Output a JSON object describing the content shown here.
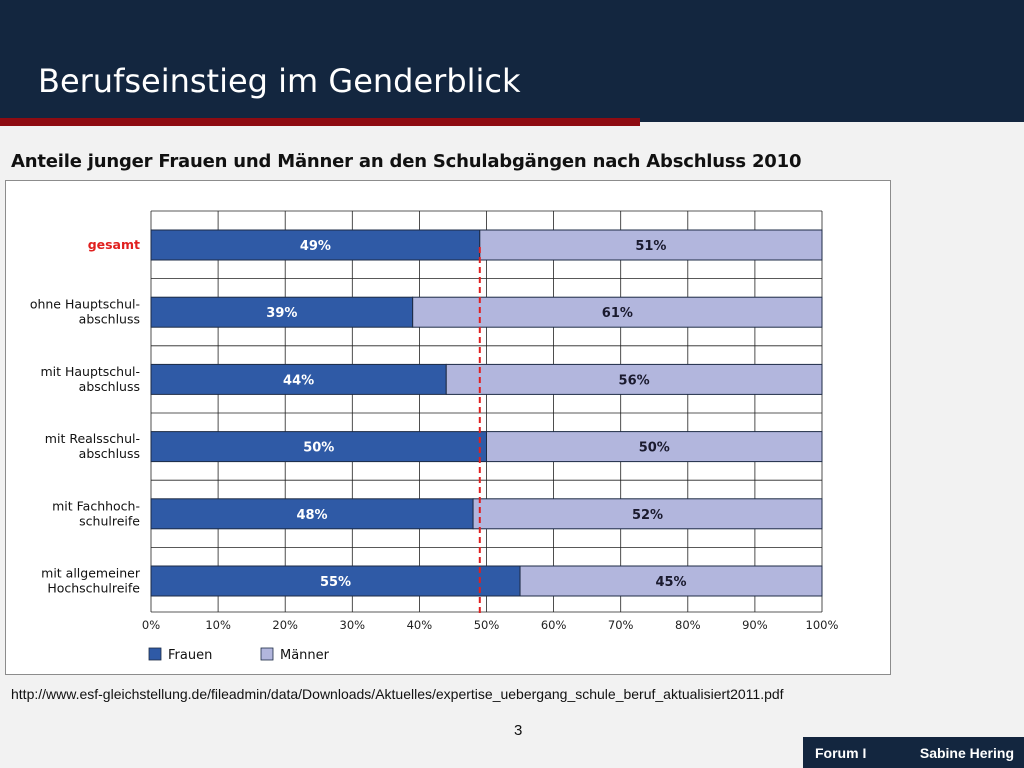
{
  "slide": {
    "title": "Berufseinstieg im Genderblick",
    "page_number": "3",
    "source_url": "http://www.esf-gleichstellung.de/fileadmin/data/Downloads/Aktuelles/expertise_uebergang_schule_beruf_aktualisiert2011.pdf"
  },
  "footer": {
    "left": "Forum I",
    "right": "Sabine Hering"
  },
  "chart_data": {
    "type": "bar",
    "orientation": "horizontal",
    "stacked": true,
    "title": "Anteile junger Frauen und Männer an den Schulabgängen nach Abschluss 2010",
    "categories": [
      [
        "gesamt"
      ],
      [
        "ohne Hauptschul-",
        "abschluss"
      ],
      [
        "mit Hauptschul-",
        "abschluss"
      ],
      [
        "mit Realsschul-",
        "abschluss"
      ],
      [
        "mit Fachhoch-",
        "schulreife"
      ],
      [
        "mit allgemeiner",
        "Hochschulreife"
      ]
    ],
    "highlight_category_index": 0,
    "series": [
      {
        "name": "Frauen",
        "values": [
          49,
          39,
          44,
          50,
          48,
          55
        ],
        "labels": [
          "49%",
          "39%",
          "44%",
          "50%",
          "48%",
          "55%"
        ]
      },
      {
        "name": "Männer",
        "values": [
          51,
          61,
          56,
          50,
          52,
          45
        ],
        "labels": [
          "51%",
          "61%",
          "56%",
          "50%",
          "52%",
          "45%"
        ]
      }
    ],
    "x_ticks": [
      "0%",
      "10%",
      "20%",
      "30%",
      "40%",
      "50%",
      "60%",
      "70%",
      "80%",
      "90%",
      "100%"
    ],
    "xlim": [
      0,
      100
    ],
    "reference_line": {
      "value": 49,
      "style": "dashed"
    },
    "grid": true,
    "legend_position": "bottom-left",
    "colors": {
      "frauen": "#2f5aa6",
      "maenner": "#b2b6dd",
      "reference": "#e0201f",
      "highlight_label": "#e0201f"
    }
  }
}
